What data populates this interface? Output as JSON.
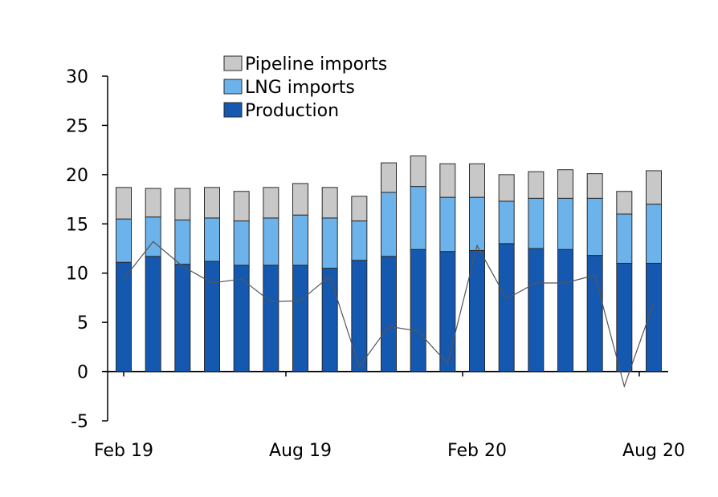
{
  "chart_data": {
    "type": "bar",
    "stacked": true,
    "categories": [
      "Feb 19",
      "Mar 19",
      "Apr 19",
      "May 19",
      "Jun 19",
      "Jul 19",
      "Aug 19",
      "Sep 19",
      "Oct 19",
      "Nov 19",
      "Dec 19",
      "Jan 20",
      "Feb 20",
      "Mar 20",
      "Apr 20",
      "May 20",
      "Jun 20",
      "Jul 20",
      "Aug 20"
    ],
    "x_tick_labels": [
      "Feb 19",
      "Aug 19",
      "Feb 20",
      "Aug 20"
    ],
    "x_tick_label_indices": [
      0,
      6,
      12,
      18
    ],
    "ylim": [
      -5,
      30
    ],
    "y_ticks": [
      -5,
      0,
      5,
      10,
      15,
      20,
      25,
      30
    ],
    "series": [
      {
        "name": "Production",
        "color": "#1558b0",
        "values": [
          11.1,
          11.7,
          10.9,
          11.2,
          10.8,
          10.8,
          10.8,
          10.5,
          11.3,
          11.7,
          12.4,
          12.2,
          12.3,
          13.0,
          12.5,
          12.4,
          11.8,
          11.0,
          11.0
        ]
      },
      {
        "name": "LNG imports",
        "color": "#6cb2eb",
        "values": [
          4.4,
          4.0,
          4.5,
          4.4,
          4.5,
          4.8,
          5.1,
          5.1,
          4.0,
          6.5,
          6.4,
          5.5,
          5.4,
          4.3,
          5.1,
          5.2,
          5.8,
          5.0,
          6.0
        ]
      },
      {
        "name": "Pipeline imports",
        "color": "#c8c8c8",
        "values": [
          3.2,
          2.9,
          3.2,
          3.1,
          3.0,
          3.1,
          3.2,
          3.1,
          2.5,
          3.0,
          3.1,
          3.4,
          3.4,
          2.7,
          2.7,
          2.9,
          2.5,
          2.3,
          3.4
        ]
      }
    ],
    "line": {
      "color": "#555555",
      "values": [
        9.4,
        13.2,
        10.7,
        9.0,
        9.4,
        7.1,
        7.2,
        9.7,
        0.5,
        4.6,
        4.1,
        0.8,
        12.8,
        7.4,
        9.0,
        9.0,
        9.8,
        -1.5,
        7.0
      ]
    },
    "legend": {
      "position": "top-center",
      "entries": [
        "Pipeline imports",
        "LNG imports",
        "Production"
      ]
    },
    "title": "",
    "xlabel": "",
    "ylabel": "",
    "grid": false
  }
}
